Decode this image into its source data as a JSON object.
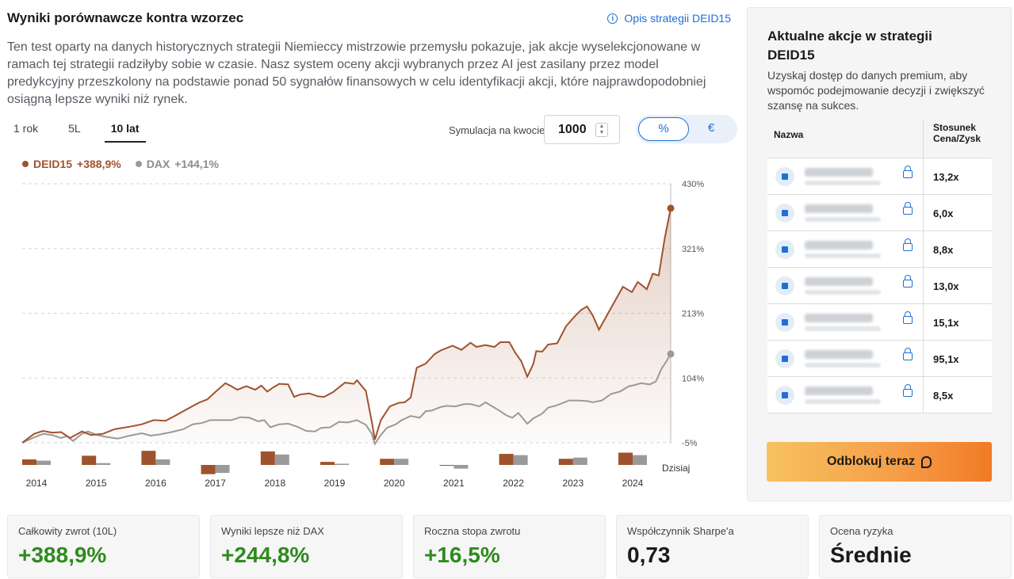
{
  "header": {
    "title": "Wyniki porównawcze kontra wzorzec",
    "strategy_link": "Opis strategii DEID15",
    "description": "Ten test oparty na danych historycznych strategii Niemieccy mistrzowie przemysłu pokazuje, jak akcje wyselekcjonowane w ramach tej strategii radziłyby sobie w czasie. Nasz system oceny akcji wybranych przez AI jest zasilany przez model predykcyjny przeszkolony na podstawie ponad 50 sygnałów finansowych w celu identyfikacji akcji, które najprawdopodobniej osiągną lepsze wyniki niż rynek."
  },
  "controls": {
    "tabs": [
      "1 rok",
      "5L",
      "10 lat"
    ],
    "active_tab": "10 lat",
    "sim_label": "Symulacja na kwocie",
    "sim_value": "1000",
    "units": [
      "%",
      "€"
    ],
    "active_unit": "%"
  },
  "legend": {
    "strategy_name": "DEID15",
    "strategy_value": "+388,9%",
    "benchmark_name": "DAX",
    "benchmark_value": "+144,1%"
  },
  "chart_data": {
    "type": "line",
    "y_axis_ticks": [
      "430%",
      "321%",
      "213%",
      "104%",
      "-5%"
    ],
    "ylim": [
      -5,
      430
    ],
    "x_start": 2014.0,
    "x_end": 2024.85,
    "series": [
      {
        "name": "DEID15",
        "color": "#a0522d",
        "points": [
          [
            2014.0,
            -5
          ],
          [
            2014.2,
            10
          ],
          [
            2014.35,
            15
          ],
          [
            2014.5,
            12
          ],
          [
            2014.65,
            13
          ],
          [
            2014.8,
            3
          ],
          [
            2015.0,
            14
          ],
          [
            2015.15,
            8
          ],
          [
            2015.35,
            10
          ],
          [
            2015.55,
            18
          ],
          [
            2015.8,
            22
          ],
          [
            2016.0,
            26
          ],
          [
            2016.2,
            33
          ],
          [
            2016.4,
            32
          ],
          [
            2016.55,
            40
          ],
          [
            2016.75,
            51
          ],
          [
            2016.95,
            62
          ],
          [
            2017.1,
            68
          ],
          [
            2017.25,
            82
          ],
          [
            2017.4,
            95
          ],
          [
            2017.5,
            90
          ],
          [
            2017.6,
            84
          ],
          [
            2017.75,
            90
          ],
          [
            2017.9,
            84
          ],
          [
            2018.0,
            91
          ],
          [
            2018.1,
            81
          ],
          [
            2018.2,
            88
          ],
          [
            2018.3,
            94
          ],
          [
            2018.45,
            93
          ],
          [
            2018.55,
            72
          ],
          [
            2018.65,
            76
          ],
          [
            2018.8,
            78
          ],
          [
            2018.95,
            73
          ],
          [
            2019.05,
            72
          ],
          [
            2019.2,
            80
          ],
          [
            2019.4,
            96
          ],
          [
            2019.55,
            94
          ],
          [
            2019.6,
            100
          ],
          [
            2019.75,
            82
          ],
          [
            2019.85,
            30
          ],
          [
            2019.9,
            0
          ],
          [
            2020.0,
            33
          ],
          [
            2020.15,
            56
          ],
          [
            2020.3,
            62
          ],
          [
            2020.4,
            63
          ],
          [
            2020.5,
            71
          ],
          [
            2020.6,
            121
          ],
          [
            2020.75,
            128
          ],
          [
            2020.9,
            144
          ],
          [
            2021.0,
            150
          ],
          [
            2021.2,
            158
          ],
          [
            2021.35,
            151
          ],
          [
            2021.5,
            163
          ],
          [
            2021.6,
            156
          ],
          [
            2021.75,
            159
          ],
          [
            2021.9,
            156
          ],
          [
            2022.0,
            164
          ],
          [
            2022.15,
            164
          ],
          [
            2022.25,
            146
          ],
          [
            2022.35,
            132
          ],
          [
            2022.45,
            106
          ],
          [
            2022.55,
            127
          ],
          [
            2022.6,
            149
          ],
          [
            2022.7,
            148
          ],
          [
            2022.8,
            160
          ],
          [
            2022.95,
            162
          ],
          [
            2023.1,
            191
          ],
          [
            2023.25,
            208
          ],
          [
            2023.35,
            218
          ],
          [
            2023.45,
            224
          ],
          [
            2023.55,
            208
          ],
          [
            2023.65,
            185
          ],
          [
            2023.8,
            212
          ],
          [
            2023.95,
            239
          ],
          [
            2024.05,
            257
          ],
          [
            2024.2,
            248
          ],
          [
            2024.3,
            265
          ],
          [
            2024.45,
            253
          ],
          [
            2024.55,
            279
          ],
          [
            2024.65,
            276
          ],
          [
            2024.75,
            339
          ],
          [
            2024.85,
            388.9
          ]
        ]
      },
      {
        "name": "DAX",
        "color": "#9a9a9a",
        "points": [
          [
            2014.0,
            -5
          ],
          [
            2014.2,
            4
          ],
          [
            2014.35,
            10
          ],
          [
            2014.5,
            8
          ],
          [
            2014.65,
            3
          ],
          [
            2014.75,
            6
          ],
          [
            2014.85,
            -2
          ],
          [
            2015.0,
            10
          ],
          [
            2015.1,
            14
          ],
          [
            2015.25,
            8
          ],
          [
            2015.4,
            5
          ],
          [
            2015.6,
            2
          ],
          [
            2015.8,
            7
          ],
          [
            2016.0,
            11
          ],
          [
            2016.15,
            7
          ],
          [
            2016.3,
            9
          ],
          [
            2016.5,
            13
          ],
          [
            2016.7,
            18
          ],
          [
            2016.85,
            26
          ],
          [
            2017.0,
            28
          ],
          [
            2017.15,
            33
          ],
          [
            2017.3,
            33
          ],
          [
            2017.5,
            33
          ],
          [
            2017.65,
            38
          ],
          [
            2017.8,
            37
          ],
          [
            2017.95,
            31
          ],
          [
            2018.05,
            33
          ],
          [
            2018.15,
            21
          ],
          [
            2018.3,
            26
          ],
          [
            2018.45,
            27
          ],
          [
            2018.6,
            22
          ],
          [
            2018.75,
            15
          ],
          [
            2018.9,
            14
          ],
          [
            2019.0,
            20
          ],
          [
            2019.15,
            21
          ],
          [
            2019.3,
            30
          ],
          [
            2019.45,
            29
          ],
          [
            2019.6,
            33
          ],
          [
            2019.75,
            25
          ],
          [
            2019.85,
            10
          ],
          [
            2019.9,
            -7
          ],
          [
            2020.0,
            8
          ],
          [
            2020.1,
            20
          ],
          [
            2020.25,
            26
          ],
          [
            2020.35,
            33
          ],
          [
            2020.5,
            40
          ],
          [
            2020.65,
            37
          ],
          [
            2020.75,
            48
          ],
          [
            2020.85,
            49
          ],
          [
            2021.0,
            55
          ],
          [
            2021.1,
            57
          ],
          [
            2021.25,
            56
          ],
          [
            2021.4,
            60
          ],
          [
            2021.5,
            60
          ],
          [
            2021.65,
            56
          ],
          [
            2021.75,
            63
          ],
          [
            2021.9,
            54
          ],
          [
            2022.0,
            48
          ],
          [
            2022.1,
            41
          ],
          [
            2022.2,
            37
          ],
          [
            2022.3,
            45
          ],
          [
            2022.45,
            27
          ],
          [
            2022.55,
            36
          ],
          [
            2022.7,
            44
          ],
          [
            2022.8,
            54
          ],
          [
            2022.95,
            58
          ],
          [
            2023.15,
            66
          ],
          [
            2023.3,
            66
          ],
          [
            2023.45,
            65
          ],
          [
            2023.55,
            63
          ],
          [
            2023.7,
            66
          ],
          [
            2023.85,
            77
          ],
          [
            2024.0,
            81
          ],
          [
            2024.15,
            90
          ],
          [
            2024.25,
            92
          ],
          [
            2024.35,
            95
          ],
          [
            2024.5,
            93
          ],
          [
            2024.6,
            98
          ],
          [
            2024.7,
            120
          ],
          [
            2024.78,
            132
          ],
          [
            2024.85,
            144.1
          ]
        ]
      }
    ],
    "annual_bars": {
      "categories": [
        "2014",
        "2015",
        "2016",
        "2017",
        "2018",
        "2019",
        "2020",
        "2021",
        "2022",
        "2023",
        "2024"
      ],
      "deid15": [
        4.5,
        7.5,
        11.5,
        -7.5,
        11,
        2.5,
        5,
        -0.5,
        9,
        5,
        10
      ],
      "dax": [
        3.5,
        1.5,
        4.5,
        -6.5,
        8.5,
        1,
        5,
        -3,
        8,
        6,
        8
      ]
    },
    "today_label": "Dzisiaj",
    "strategy_color": "#a0522d",
    "benchmark_color": "#9a9a9a"
  },
  "panel": {
    "title": "Aktualne akcje w strategii DEID15",
    "subtitle": "Uzyskaj dostęp do danych premium, aby wspomóc podejmowanie decyzji i zwiększyć szansę na sukces.",
    "col_name": "Nazwa",
    "col_pe": "Stosunek Cena/Zysk",
    "rows": [
      {
        "pe": "13,2x"
      },
      {
        "pe": "6,0x"
      },
      {
        "pe": "8,8x"
      },
      {
        "pe": "13,0x"
      },
      {
        "pe": "15,1x"
      },
      {
        "pe": "95,1x"
      },
      {
        "pe": "8,5x"
      }
    ],
    "unlock_label": "Odblokuj teraz"
  },
  "stats": [
    {
      "label": "Całkowity zwrot (10L)",
      "value": "+388,9%",
      "tone": "green"
    },
    {
      "label": "Wyniki lepsze niż DAX",
      "value": "+244,8%",
      "tone": "green"
    },
    {
      "label": "Roczna stopa zwrotu",
      "value": "+16,5%",
      "tone": "green"
    },
    {
      "label": "Współczynnik Sharpe'a",
      "value": "0,73",
      "tone": "dark"
    },
    {
      "label": "Ocena ryzyka",
      "value": "Średnie",
      "tone": "dark"
    }
  ]
}
